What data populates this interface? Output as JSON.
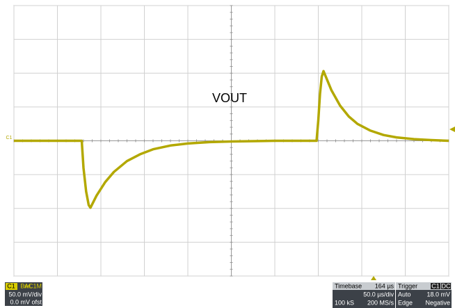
{
  "chart_data": {
    "type": "line",
    "annotation": "VOUT",
    "channel_marker": "C1",
    "color": "#b3a800",
    "x": [
      0,
      50,
      78,
      80,
      83,
      86,
      88,
      95,
      105,
      115,
      130,
      145,
      160,
      180,
      200,
      225,
      250,
      300,
      348,
      350,
      352,
      354,
      356,
      365,
      375,
      385,
      395,
      410,
      425,
      440,
      460,
      480,
      500
    ],
    "values": [
      0,
      0,
      0,
      -40,
      -75,
      -95,
      -99,
      -81,
      -61,
      -46,
      -30,
      -20,
      -12.5,
      -7,
      -4,
      -2,
      -1,
      0,
      0,
      30,
      70,
      95,
      103,
      75,
      52,
      36,
      25,
      15,
      8.5,
      5,
      2.5,
      1,
      0
    ],
    "xlim": [
      0,
      500
    ],
    "ylim": [
      -200,
      200
    ],
    "xticks": [
      0,
      50,
      100,
      150,
      200,
      250,
      300,
      350,
      400,
      450,
      500
    ],
    "yticks": [
      -200,
      -150,
      -100,
      -50,
      0,
      50,
      100,
      150,
      200
    ],
    "grid": true
  },
  "channel_panel": {
    "name": "C1",
    "bandwidth": "BwL",
    "coupling": "AC1M",
    "scale": "50.0 mV/div",
    "offset": "0.0 mV ofst"
  },
  "timebase_panel": {
    "title": "Timebase",
    "delay": "164 µs",
    "scale": "50.0 µs/div",
    "samples": "100 kS",
    "rate": "200 MS/s"
  },
  "trigger_panel": {
    "title": "Trigger",
    "source": "C1",
    "coupling": "DC",
    "mode": "Auto",
    "level": "18.0 mV",
    "type": "Edge",
    "slope": "Negative"
  }
}
